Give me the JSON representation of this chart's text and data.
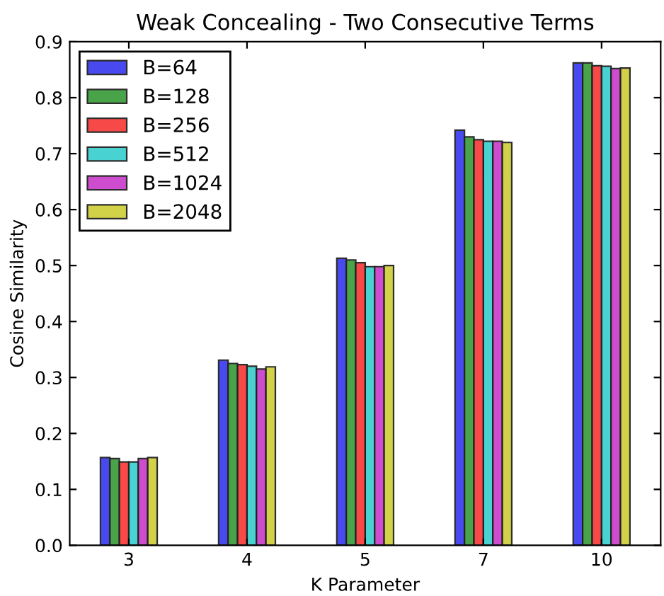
{
  "chart_data": {
    "type": "bar",
    "title": "Weak Concealing - Two Consecutive Terms",
    "xlabel": "K Parameter",
    "ylabel": "Cosine Similarity",
    "categories": [
      "3",
      "4",
      "5",
      "7",
      "10"
    ],
    "series": [
      {
        "name": "B=64",
        "color": "#4040f0",
        "values": [
          0.157,
          0.331,
          0.513,
          0.742,
          0.862
        ]
      },
      {
        "name": "B=128",
        "color": "#40a040",
        "values": [
          0.155,
          0.325,
          0.51,
          0.73,
          0.862
        ]
      },
      {
        "name": "B=256",
        "color": "#f84040",
        "values": [
          0.149,
          0.323,
          0.505,
          0.725,
          0.857
        ]
      },
      {
        "name": "B=512",
        "color": "#40d0d0",
        "values": [
          0.149,
          0.32,
          0.498,
          0.722,
          0.856
        ]
      },
      {
        "name": "B=1024",
        "color": "#cc44cc",
        "values": [
          0.155,
          0.315,
          0.498,
          0.722,
          0.852
        ]
      },
      {
        "name": "B=2048",
        "color": "#d0d040",
        "values": [
          0.157,
          0.319,
          0.5,
          0.72,
          0.853
        ]
      }
    ],
    "ylim": [
      0,
      0.9
    ],
    "yticks": [
      {
        "value": 0,
        "label": "0.0"
      },
      0.1,
      0.2,
      0.3,
      0.4,
      0.5,
      0.6,
      0.7,
      0.8,
      0.9
    ],
    "legend": "top left",
    "grid": false
  }
}
